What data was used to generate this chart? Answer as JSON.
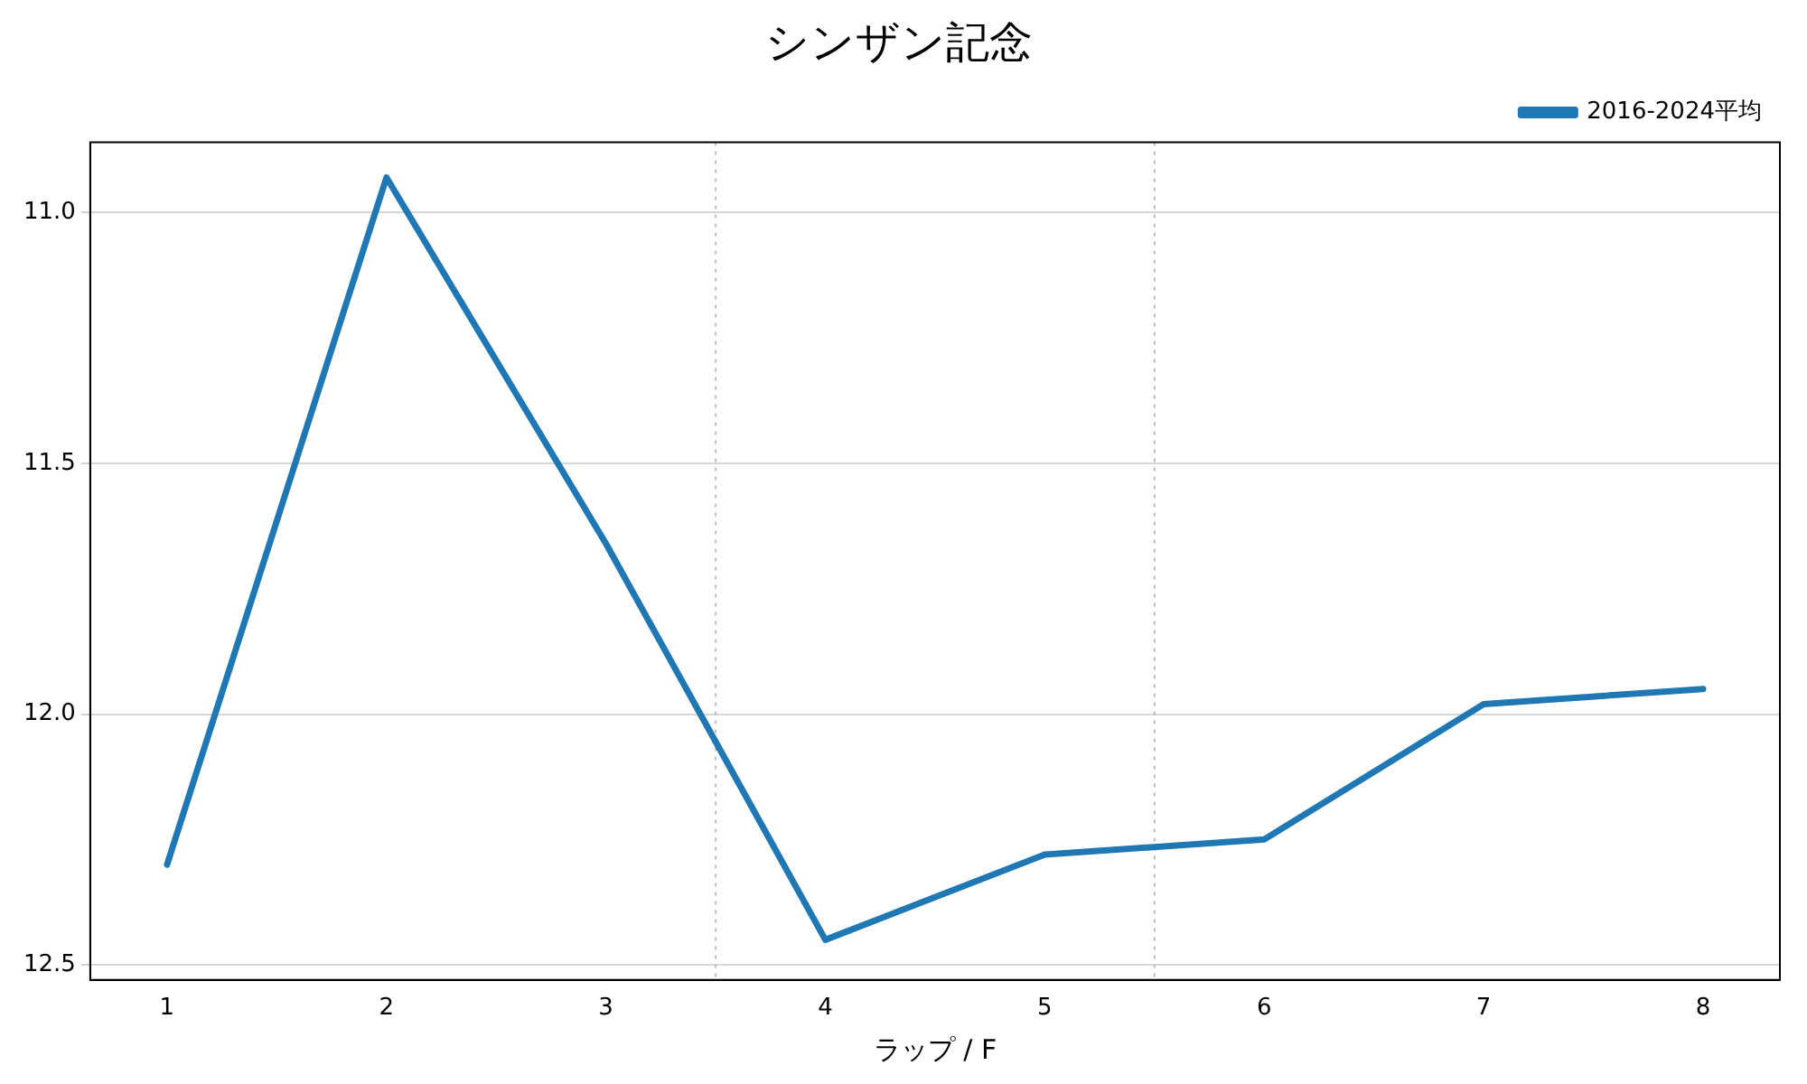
{
  "chart_data": {
    "type": "line",
    "title": "シンザン記念",
    "xlabel": "ラップ / F",
    "x": [
      1,
      2,
      3,
      4,
      5,
      6,
      7,
      8
    ],
    "series": [
      {
        "name": "2016-2024平均",
        "color": "#1f77b4",
        "values": [
          12.3,
          10.93,
          11.66,
          12.45,
          12.28,
          12.25,
          11.98,
          11.95
        ]
      }
    ],
    "xlim": [
      0.65,
      8.35
    ],
    "xticks": [
      1,
      2,
      3,
      4,
      5,
      6,
      7,
      8
    ],
    "ylim": [
      12.53,
      10.86
    ],
    "yticks": [
      {
        "value": 11.0,
        "label": "11.0"
      },
      {
        "value": 11.5,
        "label": "11.5"
      },
      {
        "value": 12.0,
        "label": "12.0"
      },
      {
        "value": 12.5,
        "label": "12.5"
      }
    ],
    "ref_lines": [
      {
        "axis": "x",
        "value": 3.5,
        "color": "#b0b0b0",
        "line_style": "dotted"
      },
      {
        "axis": "x",
        "value": 5.5,
        "color": "#b0b0b0",
        "line_style": "dotted"
      }
    ],
    "grid": "y",
    "legend": "top right",
    "marker": "none",
    "line_style": "solid"
  }
}
